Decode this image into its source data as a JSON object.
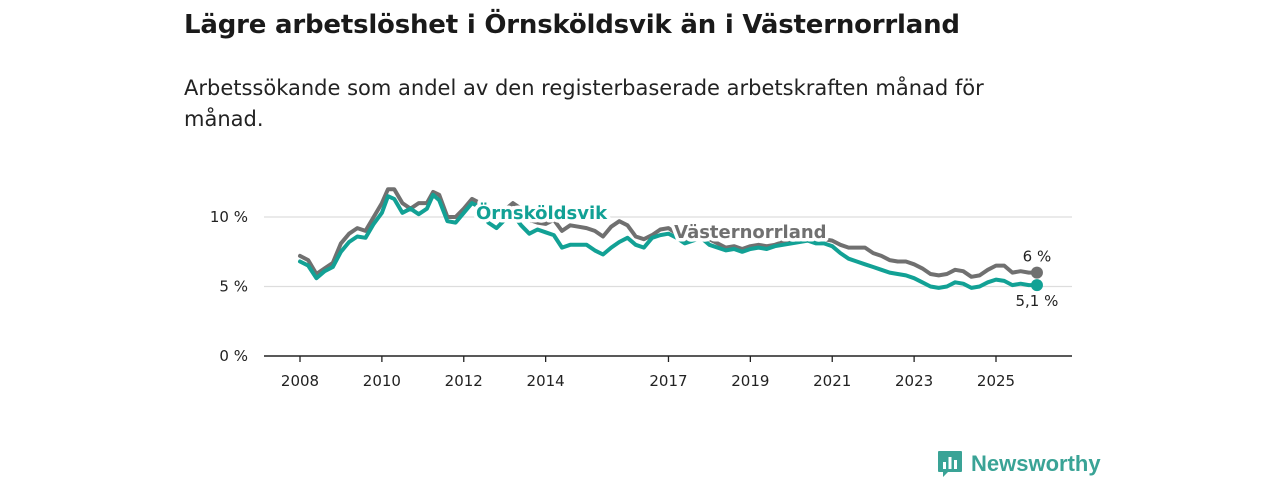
{
  "title": "Lägre arbetslöshet i Örnsköldsvik än i Västernorrland",
  "subtitle": "Arbetssökande som andel av den registerbaserade arbetskraften månad för månad.",
  "brand": {
    "name": "Newsworthy",
    "logo": "bar-chart-speech-bubble-icon"
  },
  "colors": {
    "ornskoldsvik": "#12a195",
    "vasternorrland": "#707070",
    "grid": "#dddddd",
    "axis": "#222222"
  },
  "chart_data": {
    "type": "line",
    "title": "Lägre arbetslöshet i Örnsköldsvik än i Västernorrland",
    "ylabel": "",
    "xlabel": "",
    "ylim": [
      0,
      13
    ],
    "xlim": [
      2008.0,
      2026.2
    ],
    "y_ticks": [
      {
        "value": 0,
        "label": "0 %"
      },
      {
        "value": 5,
        "label": "5 %"
      },
      {
        "value": 10,
        "label": "10 %"
      }
    ],
    "x_ticks": [
      {
        "value": 2008,
        "label": "2008"
      },
      {
        "value": 2010,
        "label": "2010"
      },
      {
        "value": 2012,
        "label": "2012"
      },
      {
        "value": 2014,
        "label": "2014"
      },
      {
        "value": 2017,
        "label": "2017"
      },
      {
        "value": 2019,
        "label": "2019"
      },
      {
        "value": 2021,
        "label": "2021"
      },
      {
        "value": 2023,
        "label": "2023"
      },
      {
        "value": 2025,
        "label": "2025"
      }
    ],
    "series": [
      {
        "name": "Västernorrland",
        "key": "vasternorrland",
        "end_label": "6 %",
        "points": [
          [
            2008.0,
            7.2
          ],
          [
            2008.2,
            6.9
          ],
          [
            2008.4,
            5.9
          ],
          [
            2008.6,
            6.3
          ],
          [
            2008.8,
            6.7
          ],
          [
            2009.0,
            8.1
          ],
          [
            2009.2,
            8.8
          ],
          [
            2009.4,
            9.2
          ],
          [
            2009.6,
            9.0
          ],
          [
            2009.8,
            10.0
          ],
          [
            2010.0,
            11.0
          ],
          [
            2010.15,
            12.0
          ],
          [
            2010.3,
            12.0
          ],
          [
            2010.5,
            11.0
          ],
          [
            2010.7,
            10.6
          ],
          [
            2010.9,
            11.0
          ],
          [
            2011.1,
            11.0
          ],
          [
            2011.25,
            11.8
          ],
          [
            2011.4,
            11.6
          ],
          [
            2011.6,
            10.0
          ],
          [
            2011.8,
            10.0
          ],
          [
            2012.0,
            10.6
          ],
          [
            2012.2,
            11.3
          ],
          [
            2012.4,
            11.0
          ],
          [
            2012.6,
            10.0
          ],
          [
            2012.8,
            9.8
          ],
          [
            2013.0,
            10.5
          ],
          [
            2013.2,
            11.0
          ],
          [
            2013.4,
            10.6
          ],
          [
            2013.6,
            9.8
          ],
          [
            2013.8,
            9.6
          ],
          [
            2014.0,
            9.5
          ],
          [
            2014.2,
            9.8
          ],
          [
            2014.4,
            9.0
          ],
          [
            2014.6,
            9.4
          ],
          [
            2014.8,
            9.3
          ],
          [
            2015.0,
            9.2
          ],
          [
            2015.2,
            9.0
          ],
          [
            2015.4,
            8.6
          ],
          [
            2015.6,
            9.3
          ],
          [
            2015.8,
            9.7
          ],
          [
            2016.0,
            9.4
          ],
          [
            2016.2,
            8.6
          ],
          [
            2016.4,
            8.4
          ],
          [
            2016.6,
            8.7
          ],
          [
            2016.8,
            9.1
          ],
          [
            2017.0,
            9.2
          ],
          [
            2017.2,
            8.8
          ],
          [
            2017.4,
            8.4
          ],
          [
            2017.6,
            8.6
          ],
          [
            2017.8,
            8.8
          ],
          [
            2018.0,
            8.4
          ],
          [
            2018.2,
            8.1
          ],
          [
            2018.4,
            7.8
          ],
          [
            2018.6,
            7.9
          ],
          [
            2018.8,
            7.7
          ],
          [
            2019.0,
            7.9
          ],
          [
            2019.2,
            8.0
          ],
          [
            2019.4,
            7.9
          ],
          [
            2019.6,
            8.0
          ],
          [
            2019.8,
            8.2
          ],
          [
            2020.0,
            8.2
          ],
          [
            2020.2,
            8.3
          ],
          [
            2020.4,
            8.4
          ],
          [
            2020.6,
            8.3
          ],
          [
            2020.8,
            8.4
          ],
          [
            2021.0,
            8.3
          ],
          [
            2021.2,
            8.0
          ],
          [
            2021.4,
            7.8
          ],
          [
            2021.6,
            7.8
          ],
          [
            2021.8,
            7.8
          ],
          [
            2022.0,
            7.4
          ],
          [
            2022.2,
            7.2
          ],
          [
            2022.4,
            6.9
          ],
          [
            2022.6,
            6.8
          ],
          [
            2022.8,
            6.8
          ],
          [
            2023.0,
            6.6
          ],
          [
            2023.2,
            6.3
          ],
          [
            2023.4,
            5.9
          ],
          [
            2023.6,
            5.8
          ],
          [
            2023.8,
            5.9
          ],
          [
            2024.0,
            6.2
          ],
          [
            2024.2,
            6.1
          ],
          [
            2024.4,
            5.7
          ],
          [
            2024.6,
            5.8
          ],
          [
            2024.8,
            6.2
          ],
          [
            2025.0,
            6.5
          ],
          [
            2025.2,
            6.5
          ],
          [
            2025.4,
            6.0
          ],
          [
            2025.6,
            6.1
          ],
          [
            2025.8,
            6.0
          ],
          [
            2026.0,
            6.0
          ]
        ]
      },
      {
        "name": "Örnsköldsvik",
        "key": "ornskoldsvik",
        "end_label": "5,1 %",
        "points": [
          [
            2008.0,
            6.8
          ],
          [
            2008.2,
            6.5
          ],
          [
            2008.4,
            5.6
          ],
          [
            2008.6,
            6.1
          ],
          [
            2008.8,
            6.4
          ],
          [
            2009.0,
            7.5
          ],
          [
            2009.2,
            8.2
          ],
          [
            2009.4,
            8.6
          ],
          [
            2009.6,
            8.5
          ],
          [
            2009.8,
            9.5
          ],
          [
            2010.0,
            10.3
          ],
          [
            2010.15,
            11.5
          ],
          [
            2010.3,
            11.3
          ],
          [
            2010.5,
            10.3
          ],
          [
            2010.7,
            10.6
          ],
          [
            2010.9,
            10.2
          ],
          [
            2011.1,
            10.6
          ],
          [
            2011.25,
            11.6
          ],
          [
            2011.4,
            11.2
          ],
          [
            2011.6,
            9.7
          ],
          [
            2011.8,
            9.6
          ],
          [
            2012.0,
            10.3
          ],
          [
            2012.2,
            11.0
          ],
          [
            2012.4,
            10.7
          ],
          [
            2012.6,
            9.6
          ],
          [
            2012.8,
            9.2
          ],
          [
            2013.0,
            9.8
          ],
          [
            2013.2,
            10.2
          ],
          [
            2013.4,
            9.4
          ],
          [
            2013.6,
            8.8
          ],
          [
            2013.8,
            9.1
          ],
          [
            2014.0,
            8.9
          ],
          [
            2014.2,
            8.7
          ],
          [
            2014.4,
            7.8
          ],
          [
            2014.6,
            8.0
          ],
          [
            2014.8,
            8.0
          ],
          [
            2015.0,
            8.0
          ],
          [
            2015.2,
            7.6
          ],
          [
            2015.4,
            7.3
          ],
          [
            2015.6,
            7.8
          ],
          [
            2015.8,
            8.2
          ],
          [
            2016.0,
            8.5
          ],
          [
            2016.2,
            8.0
          ],
          [
            2016.4,
            7.8
          ],
          [
            2016.6,
            8.5
          ],
          [
            2016.8,
            8.7
          ],
          [
            2017.0,
            8.8
          ],
          [
            2017.2,
            8.5
          ],
          [
            2017.4,
            8.1
          ],
          [
            2017.6,
            8.3
          ],
          [
            2017.8,
            8.5
          ],
          [
            2018.0,
            8.0
          ],
          [
            2018.2,
            7.8
          ],
          [
            2018.4,
            7.6
          ],
          [
            2018.6,
            7.7
          ],
          [
            2018.8,
            7.5
          ],
          [
            2019.0,
            7.7
          ],
          [
            2019.2,
            7.8
          ],
          [
            2019.4,
            7.7
          ],
          [
            2019.6,
            7.9
          ],
          [
            2019.8,
            8.0
          ],
          [
            2020.0,
            8.1
          ],
          [
            2020.2,
            8.2
          ],
          [
            2020.4,
            8.3
          ],
          [
            2020.6,
            8.1
          ],
          [
            2020.8,
            8.1
          ],
          [
            2021.0,
            7.9
          ],
          [
            2021.2,
            7.4
          ],
          [
            2021.4,
            7.0
          ],
          [
            2021.6,
            6.8
          ],
          [
            2021.8,
            6.6
          ],
          [
            2022.0,
            6.4
          ],
          [
            2022.2,
            6.2
          ],
          [
            2022.4,
            6.0
          ],
          [
            2022.6,
            5.9
          ],
          [
            2022.8,
            5.8
          ],
          [
            2023.0,
            5.6
          ],
          [
            2023.2,
            5.3
          ],
          [
            2023.4,
            5.0
          ],
          [
            2023.6,
            4.9
          ],
          [
            2023.8,
            5.0
          ],
          [
            2024.0,
            5.3
          ],
          [
            2024.2,
            5.2
          ],
          [
            2024.4,
            4.9
          ],
          [
            2024.6,
            5.0
          ],
          [
            2024.8,
            5.3
          ],
          [
            2025.0,
            5.5
          ],
          [
            2025.2,
            5.4
          ],
          [
            2025.4,
            5.1
          ],
          [
            2025.6,
            5.2
          ],
          [
            2025.8,
            5.1
          ],
          [
            2026.0,
            5.1
          ]
        ]
      }
    ],
    "annotations": [
      {
        "series": "ornskoldsvik",
        "text": "Örnsköldsvik",
        "x": 2013.9,
        "y": 9.85
      },
      {
        "series": "vasternorrland",
        "text": "Västernorrland",
        "x": 2019.0,
        "y": 8.5
      }
    ]
  }
}
